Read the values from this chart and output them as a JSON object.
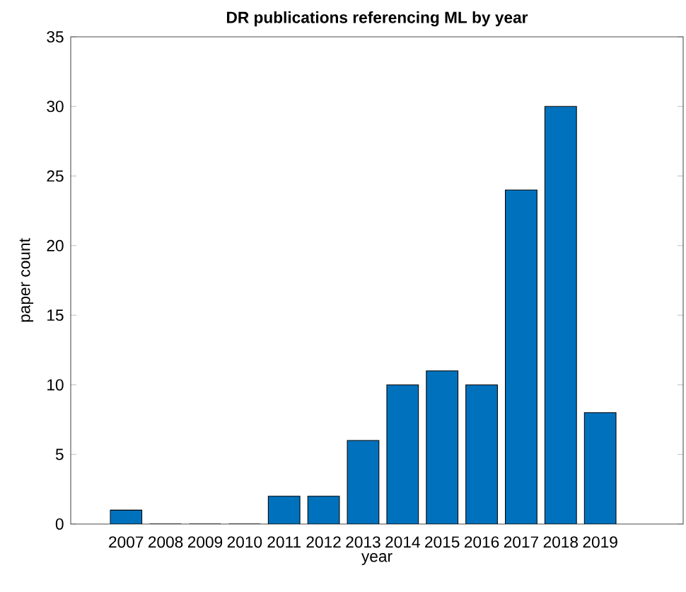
{
  "chart_data": {
    "type": "bar",
    "title": "DR publications referencing ML by year",
    "xlabel": "year",
    "ylabel": "paper count",
    "categories": [
      "2007",
      "2008",
      "2009",
      "2010",
      "2011",
      "2012",
      "2013",
      "2014",
      "2015",
      "2016",
      "2017",
      "2018",
      "2019"
    ],
    "values": [
      1,
      0,
      0,
      0,
      2,
      2,
      6,
      10,
      11,
      10,
      24,
      30,
      8
    ],
    "color": "#0072bd",
    "ylim": [
      0,
      35
    ],
    "yticks": [
      0,
      5,
      10,
      15,
      20,
      25,
      30,
      35
    ],
    "grid": false
  }
}
